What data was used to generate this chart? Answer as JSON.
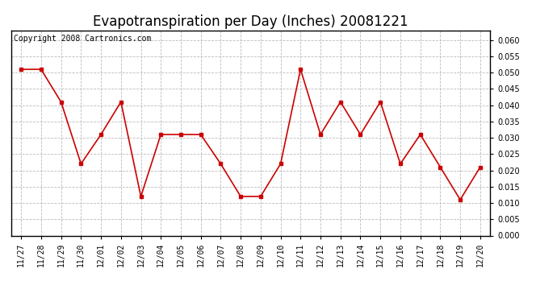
{
  "title": "Evapotranspiration per Day (Inches) 20081221",
  "copyright_text": "Copyright 2008 Cartronics.com",
  "x_labels": [
    "11/27",
    "11/28",
    "11/29",
    "11/30",
    "12/01",
    "12/02",
    "12/03",
    "12/04",
    "12/05",
    "12/06",
    "12/07",
    "12/08",
    "12/09",
    "12/10",
    "12/11",
    "12/12",
    "12/13",
    "12/14",
    "12/15",
    "12/16",
    "12/17",
    "12/18",
    "12/19",
    "12/20"
  ],
  "y_values": [
    0.051,
    0.051,
    0.041,
    0.022,
    0.031,
    0.041,
    0.012,
    0.031,
    0.031,
    0.031,
    0.022,
    0.012,
    0.012,
    0.022,
    0.051,
    0.031,
    0.041,
    0.031,
    0.041,
    0.022,
    0.031,
    0.021,
    0.011,
    0.021
  ],
  "line_color": "#cc0000",
  "marker": "s",
  "marker_size": 3,
  "ylim": [
    0.0,
    0.063
  ],
  "yticks": [
    0.0,
    0.005,
    0.01,
    0.015,
    0.02,
    0.025,
    0.03,
    0.035,
    0.04,
    0.045,
    0.05,
    0.055,
    0.06
  ],
  "background_color": "#ffffff",
  "plot_bg_color": "#ffffff",
  "grid_color": "#bbbbbb",
  "title_fontsize": 12,
  "copyright_fontsize": 7,
  "tick_fontsize": 7,
  "linewidth": 1.2
}
